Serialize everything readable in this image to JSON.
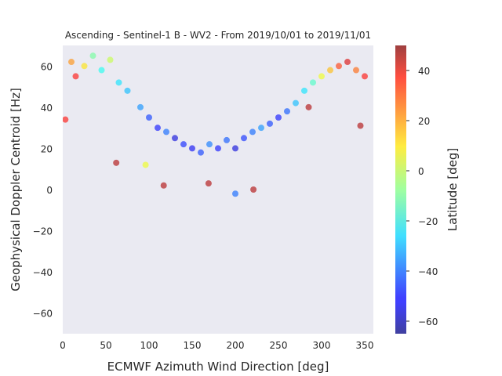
{
  "chart_data": {
    "type": "scatter",
    "title": "Ascending - Sentinel-1 B - WV2 - From 2019/10/01 to 2019/11/01",
    "xlabel": "ECMWF Azimuth Wind Direction [deg]",
    "ylabel": "Geophysical Doppler Centroid [Hz]",
    "xlim": [
      0,
      360
    ],
    "ylim": [
      -70,
      70
    ],
    "xticks": [
      "0",
      "50",
      "100",
      "150",
      "200",
      "250",
      "300",
      "350"
    ],
    "yticks": [
      "60",
      "40",
      "20",
      "0",
      "−20",
      "−40",
      "−60"
    ],
    "grid": false,
    "background": "#eaeaf2",
    "colorbar": {
      "label": "Latitude [deg]",
      "range": [
        -65,
        50
      ],
      "ticks": [
        "40",
        "20",
        "0",
        "−20",
        "−40",
        "−60"
      ],
      "colormap": "jet"
    },
    "series": [
      {
        "color_by": "latitude",
        "points": [
          {
            "x": 10,
            "y": 62,
            "lat": 20
          },
          {
            "x": 15,
            "y": 55,
            "lat": 35
          },
          {
            "x": 25,
            "y": 60,
            "lat": 10
          },
          {
            "x": 35,
            "y": 65,
            "lat": -10
          },
          {
            "x": 45,
            "y": 58,
            "lat": -20
          },
          {
            "x": 55,
            "y": 63,
            "lat": 0
          },
          {
            "x": 65,
            "y": 52,
            "lat": -25
          },
          {
            "x": 75,
            "y": 48,
            "lat": -30
          },
          {
            "x": 90,
            "y": 40,
            "lat": -35
          },
          {
            "x": 100,
            "y": 35,
            "lat": -45
          },
          {
            "x": 110,
            "y": 30,
            "lat": -50
          },
          {
            "x": 120,
            "y": 28,
            "lat": -40
          },
          {
            "x": 130,
            "y": 25,
            "lat": -55
          },
          {
            "x": 140,
            "y": 22,
            "lat": -48
          },
          {
            "x": 150,
            "y": 20,
            "lat": -52
          },
          {
            "x": 160,
            "y": 18,
            "lat": -45
          },
          {
            "x": 170,
            "y": 22,
            "lat": -38
          },
          {
            "x": 180,
            "y": 20,
            "lat": -50
          },
          {
            "x": 190,
            "y": 24,
            "lat": -42
          },
          {
            "x": 200,
            "y": 20,
            "lat": -55
          },
          {
            "x": 210,
            "y": 25,
            "lat": -47
          },
          {
            "x": 220,
            "y": 28,
            "lat": -40
          },
          {
            "x": 230,
            "y": 30,
            "lat": -35
          },
          {
            "x": 240,
            "y": 32,
            "lat": -45
          },
          {
            "x": 250,
            "y": 35,
            "lat": -50
          },
          {
            "x": 260,
            "y": 38,
            "lat": -42
          },
          {
            "x": 270,
            "y": 42,
            "lat": -30
          },
          {
            "x": 280,
            "y": 48,
            "lat": -25
          },
          {
            "x": 290,
            "y": 52,
            "lat": -15
          },
          {
            "x": 300,
            "y": 55,
            "lat": 5
          },
          {
            "x": 310,
            "y": 58,
            "lat": 15
          },
          {
            "x": 320,
            "y": 60,
            "lat": 30
          },
          {
            "x": 330,
            "y": 62,
            "lat": 40
          },
          {
            "x": 340,
            "y": 58,
            "lat": 25
          },
          {
            "x": 350,
            "y": 55,
            "lat": 35
          },
          {
            "x": 62,
            "y": 13,
            "lat": 45
          },
          {
            "x": 117,
            "y": 2,
            "lat": 45
          },
          {
            "x": 169,
            "y": 3,
            "lat": 45
          },
          {
            "x": 221,
            "y": 0,
            "lat": 45
          },
          {
            "x": 200,
            "y": -2,
            "lat": -40
          },
          {
            "x": 345,
            "y": 31,
            "lat": 45
          },
          {
            "x": 96,
            "y": 12,
            "lat": 5
          },
          {
            "x": 3,
            "y": 34,
            "lat": 35
          },
          {
            "x": 285,
            "y": 40,
            "lat": 45
          }
        ]
      }
    ]
  }
}
